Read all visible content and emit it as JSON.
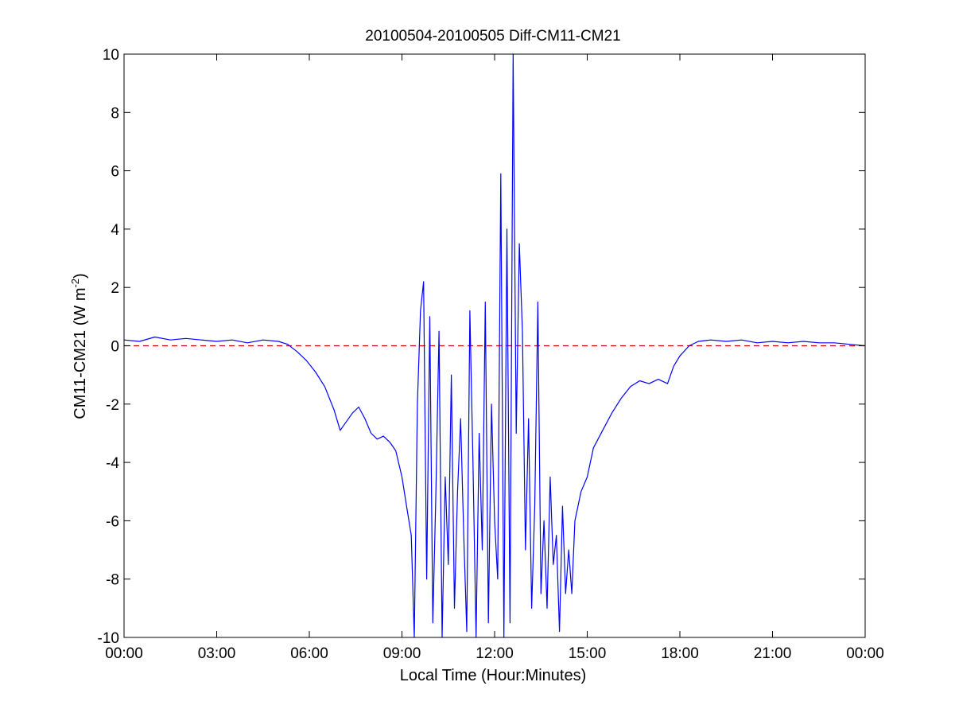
{
  "chart_data": {
    "type": "line",
    "title": "20100504-20100505 Diff-CM11-CM21",
    "xlabel": "Local Time (Hour:Minutes)",
    "ylabel": "CM11-CM21 (W m",
    "ylabel_superscript": "-2",
    "ylabel_suffix": ")",
    "xlim": [
      0,
      24
    ],
    "ylim": [
      -10,
      10
    ],
    "x_unit": "hours (local time)",
    "x_ticks": [
      0,
      3,
      6,
      9,
      12,
      15,
      18,
      21,
      24
    ],
    "x_tick_labels": [
      "00:00",
      "03:00",
      "06:00",
      "09:00",
      "12:00",
      "15:00",
      "18:00",
      "21:00",
      "00:00"
    ],
    "y_ticks": [
      -10,
      -8,
      -6,
      -4,
      -2,
      0,
      2,
      4,
      6,
      8,
      10
    ],
    "y_tick_labels": [
      "-10",
      "-8",
      "-6",
      "-4",
      "-2",
      "0",
      "2",
      "4",
      "6",
      "8",
      "10"
    ],
    "grid": false,
    "reference_line": {
      "y": 0,
      "style": "dashed",
      "color": "#cc0000"
    },
    "series": [
      {
        "color": "#0000ff",
        "x": [
          0.0,
          0.5,
          1.0,
          1.5,
          2.0,
          2.5,
          3.0,
          3.5,
          4.0,
          4.5,
          5.0,
          5.3,
          5.6,
          5.9,
          6.2,
          6.5,
          6.8,
          7.0,
          7.2,
          7.4,
          7.6,
          7.8,
          8.0,
          8.2,
          8.4,
          8.6,
          8.8,
          9.0,
          9.15,
          9.3,
          9.4,
          9.5,
          9.6,
          9.7,
          9.8,
          9.9,
          10.0,
          10.1,
          10.2,
          10.3,
          10.4,
          10.5,
          10.6,
          10.7,
          10.8,
          10.9,
          11.0,
          11.1,
          11.2,
          11.3,
          11.4,
          11.5,
          11.6,
          11.7,
          11.8,
          11.9,
          12.0,
          12.1,
          12.2,
          12.3,
          12.4,
          12.5,
          12.6,
          12.7,
          12.8,
          12.9,
          13.0,
          13.1,
          13.2,
          13.3,
          13.4,
          13.5,
          13.6,
          13.7,
          13.8,
          13.9,
          14.0,
          14.1,
          14.2,
          14.3,
          14.4,
          14.5,
          14.6,
          14.8,
          15.0,
          15.2,
          15.5,
          15.8,
          16.1,
          16.4,
          16.7,
          17.0,
          17.3,
          17.6,
          17.8,
          18.0,
          18.3,
          18.6,
          19.0,
          19.5,
          20.0,
          20.5,
          21.0,
          21.5,
          22.0,
          22.5,
          23.0,
          23.5,
          24.0
        ],
        "y": [
          0.2,
          0.15,
          0.3,
          0.2,
          0.25,
          0.2,
          0.15,
          0.2,
          0.1,
          0.2,
          0.15,
          0.05,
          -0.2,
          -0.5,
          -0.9,
          -1.4,
          -2.2,
          -2.9,
          -2.6,
          -2.3,
          -2.1,
          -2.5,
          -3.0,
          -3.2,
          -3.1,
          -3.3,
          -3.6,
          -4.5,
          -5.5,
          -6.5,
          -10.0,
          -2.0,
          1.2,
          2.2,
          -8.0,
          1.0,
          -9.5,
          -5.0,
          0.5,
          -10.0,
          -4.5,
          -7.5,
          -1.0,
          -9.0,
          -5.0,
          -2.5,
          -6.5,
          -9.8,
          1.2,
          -4.0,
          -10.0,
          -3.0,
          -7.0,
          1.5,
          -9.5,
          -2.0,
          -6.0,
          -8.0,
          5.9,
          -10.0,
          4.0,
          -9.5,
          10.0,
          -3.0,
          3.5,
          0.5,
          -7.0,
          -2.5,
          -9.0,
          -5.5,
          1.5,
          -8.5,
          -6.0,
          -9.0,
          -4.5,
          -7.5,
          -6.5,
          -9.8,
          -5.5,
          -8.5,
          -7.0,
          -8.5,
          -6.0,
          -5.0,
          -4.5,
          -3.5,
          -2.9,
          -2.3,
          -1.8,
          -1.4,
          -1.2,
          -1.3,
          -1.15,
          -1.3,
          -0.7,
          -0.35,
          0.0,
          0.15,
          0.2,
          0.15,
          0.2,
          0.1,
          0.15,
          0.1,
          0.15,
          0.1,
          0.1,
          0.05,
          0.0
        ]
      }
    ]
  }
}
